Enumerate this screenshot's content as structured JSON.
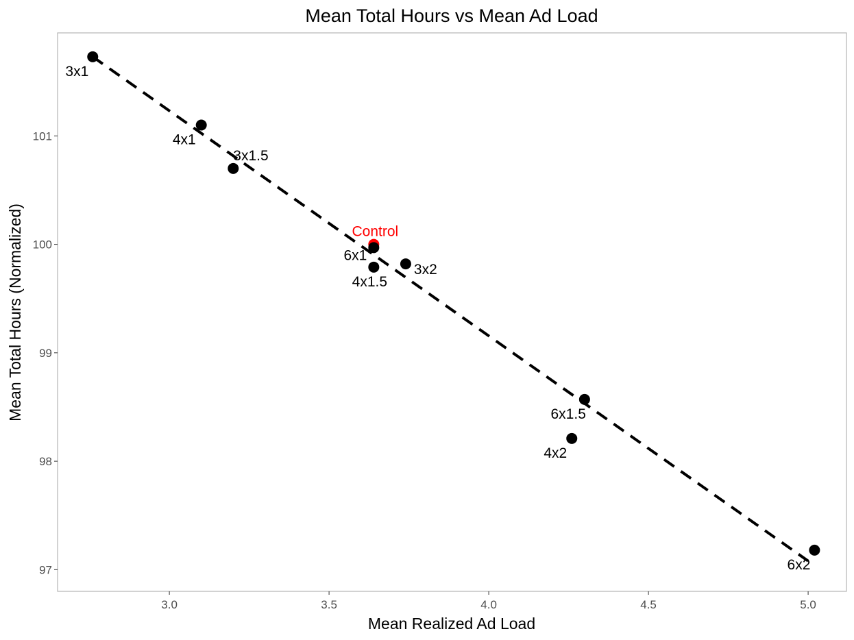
{
  "chart_data": {
    "type": "scatter",
    "title": "Mean Total Hours vs Mean Ad Load",
    "xlabel": "Mean Realized Ad Load",
    "ylabel": "Mean Total Hours (Normalized)",
    "xlim": [
      2.65,
      5.12
    ],
    "ylim": [
      96.8,
      101.95
    ],
    "x_ticks": [
      3.0,
      3.5,
      4.0,
      4.5,
      5.0
    ],
    "x_tick_labels": [
      "3.0",
      "3.5",
      "4.0",
      "4.5",
      "5.0"
    ],
    "y_ticks": [
      97,
      98,
      99,
      100,
      101
    ],
    "y_tick_labels": [
      "97",
      "98",
      "99",
      "100",
      "101"
    ],
    "grid": false,
    "points": [
      {
        "label": "3x1",
        "x": 2.76,
        "y": 101.73,
        "color": "#000000",
        "anchor": "end",
        "dx": -6,
        "dy": 28
      },
      {
        "label": "4x1",
        "x": 3.1,
        "y": 101.1,
        "color": "#000000",
        "anchor": "end",
        "dx": -8,
        "dy": 28
      },
      {
        "label": "3x1.5",
        "x": 3.2,
        "y": 100.7,
        "color": "#000000",
        "anchor": "start",
        "dx": 0,
        "dy": -12
      },
      {
        "label": "Control",
        "x": 3.64,
        "y": 100.0,
        "color": "#ff0000",
        "anchor": "middle",
        "dx": 2,
        "dy": -12
      },
      {
        "label": "6x1",
        "x": 3.64,
        "y": 99.97,
        "color": "#000000",
        "anchor": "end",
        "dx": -10,
        "dy": 18
      },
      {
        "label": "4x1.5",
        "x": 3.64,
        "y": 99.79,
        "color": "#000000",
        "anchor": "middle",
        "dx": -6,
        "dy": 28
      },
      {
        "label": "3x2",
        "x": 3.74,
        "y": 99.82,
        "color": "#000000",
        "anchor": "start",
        "dx": 12,
        "dy": 15
      },
      {
        "label": "6x1.5",
        "x": 4.3,
        "y": 98.57,
        "color": "#000000",
        "anchor": "end",
        "dx": 2,
        "dy": 28
      },
      {
        "label": "4x2",
        "x": 4.26,
        "y": 98.21,
        "color": "#000000",
        "anchor": "end",
        "dx": -7,
        "dy": 28
      },
      {
        "label": "6x2",
        "x": 5.02,
        "y": 97.18,
        "color": "#000000",
        "anchor": "end",
        "dx": -6,
        "dy": 28
      }
    ],
    "fit_line": {
      "x": [
        2.76,
        5.0
      ],
      "y": [
        101.73,
        97.08
      ],
      "style": "dashed",
      "color": "#000000"
    },
    "colors": {
      "points": "#000000",
      "control": "#ff0000",
      "panel_border": "#b3b3b3"
    }
  }
}
